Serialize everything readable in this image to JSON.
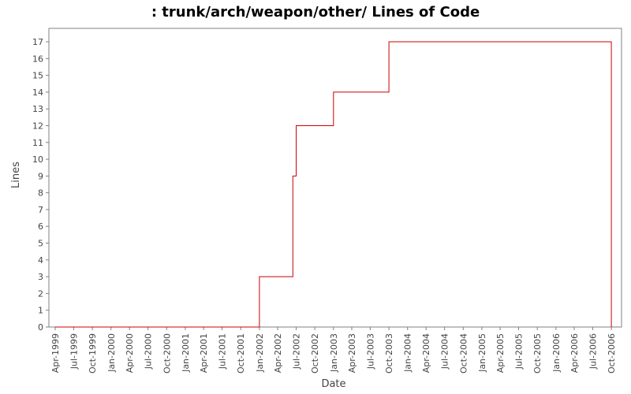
{
  "chart_data": {
    "type": "line",
    "title": ": trunk/arch/weapon/other/ Lines of Code",
    "xlabel": "Date",
    "ylabel": "Lines",
    "step": true,
    "series_color": "#cc0000",
    "grid": false,
    "ylim": [
      0,
      17.8
    ],
    "yticks": [
      0,
      1,
      2,
      3,
      4,
      5,
      6,
      7,
      8,
      9,
      10,
      11,
      12,
      13,
      14,
      15,
      16,
      17
    ],
    "xlim": [
      "1999-03-01",
      "2006-11-20"
    ],
    "xticks": [
      "1999-04-01",
      "1999-07-01",
      "1999-10-01",
      "2000-01-01",
      "2000-04-01",
      "2000-07-01",
      "2000-10-01",
      "2001-01-01",
      "2001-04-01",
      "2001-07-01",
      "2001-10-01",
      "2002-01-01",
      "2002-04-01",
      "2002-07-01",
      "2002-10-01",
      "2003-01-01",
      "2003-04-01",
      "2003-07-01",
      "2003-10-01",
      "2004-01-01",
      "2004-04-01",
      "2004-07-01",
      "2004-10-01",
      "2005-01-01",
      "2005-04-01",
      "2005-07-01",
      "2005-10-01",
      "2006-01-01",
      "2006-04-01",
      "2006-07-01",
      "2006-10-01"
    ],
    "xtick_labels": [
      "Apr-1999",
      "Jul-1999",
      "Oct-1999",
      "Jan-2000",
      "Apr-2000",
      "Jul-2000",
      "Oct-2000",
      "Jan-2001",
      "Apr-2001",
      "Jul-2001",
      "Oct-2001",
      "Jan-2002",
      "Apr-2002",
      "Jul-2002",
      "Oct-2002",
      "Jan-2003",
      "Apr-2003",
      "Jul-2003",
      "Oct-2003",
      "Jan-2004",
      "Apr-2004",
      "Jul-2004",
      "Oct-2004",
      "Jan-2005",
      "Apr-2005",
      "Jul-2005",
      "Oct-2005",
      "Jan-2006",
      "Apr-2006",
      "Jul-2006",
      "Oct-2006"
    ],
    "series": [
      {
        "x": [
          "1999-04-01",
          "2002-01-01",
          "2002-06-15",
          "2002-07-01",
          "2003-01-01",
          "2003-10-01",
          "2006-10-01"
        ],
        "y": [
          0,
          3,
          9,
          12,
          14,
          17,
          0
        ]
      }
    ]
  }
}
